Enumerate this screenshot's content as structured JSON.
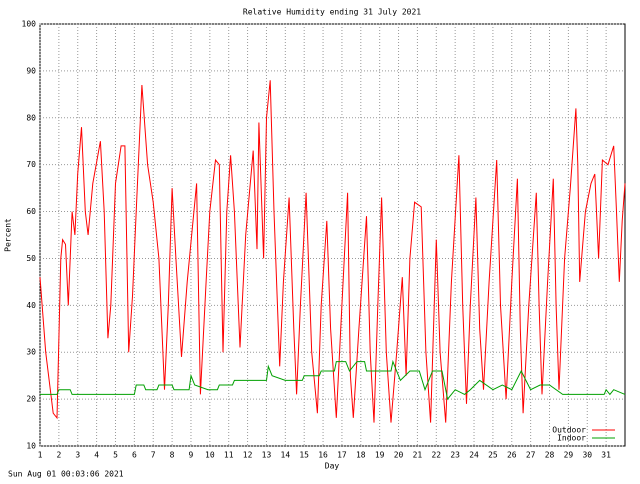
{
  "chart_data": {
    "type": "line",
    "title": "Relative Humidity ending 31 July 2021",
    "x_label": "Day",
    "y_label": "Percent",
    "footnote": "Sun Aug 01 00:03:06 2021",
    "xlim": [
      1,
      32
    ],
    "ylim": [
      10,
      100
    ],
    "xticks": [
      1,
      2,
      3,
      4,
      5,
      6,
      7,
      8,
      9,
      10,
      11,
      12,
      13,
      14,
      15,
      16,
      17,
      18,
      19,
      20,
      21,
      22,
      23,
      24,
      25,
      26,
      27,
      28,
      29,
      30,
      31
    ],
    "yticks": [
      10,
      20,
      30,
      40,
      50,
      60,
      70,
      80,
      90,
      100
    ],
    "grid": true,
    "legend": "bottom-right",
    "series": [
      {
        "name": "Outdoor",
        "color": "#ff0000",
        "x": [
          1,
          1.3,
          1.7,
          1.9,
          2.1,
          2.2,
          2.35,
          2.5,
          2.7,
          2.85,
          3,
          3.2,
          3.4,
          3.55,
          3.8,
          4.2,
          4.4,
          4.6,
          4.75,
          5,
          5.3,
          5.5,
          5.7,
          5.9,
          6.1,
          6.4,
          6.7,
          7,
          7.3,
          7.6,
          7.8,
          8,
          8.2,
          8.5,
          8.8,
          9.3,
          9.5,
          9.8,
          10,
          10.3,
          10.5,
          10.7,
          10.9,
          11.1,
          11.3,
          11.6,
          11.9,
          12.3,
          12.5,
          12.6,
          12.85,
          13,
          13.2,
          13.4,
          13.7,
          13.9,
          14.2,
          14.45,
          14.6,
          14.8,
          15.1,
          15.4,
          15.7,
          15.9,
          16.2,
          16.4,
          16.7,
          17,
          17.3,
          17.45,
          17.6,
          17.9,
          18.3,
          18.5,
          18.7,
          18.9,
          19.1,
          19.35,
          19.6,
          19.9,
          20.2,
          20.4,
          20.6,
          20.85,
          21.2,
          21.45,
          21.7,
          21.85,
          22,
          22.2,
          22.5,
          22.8,
          23.2,
          23.4,
          23.6,
          23.8,
          24.1,
          24.3,
          24.5,
          24.8,
          25.2,
          25.4,
          25.7,
          26,
          26.3,
          26.45,
          26.6,
          26.9,
          27.3,
          27.45,
          27.6,
          27.9,
          28.2,
          28.35,
          28.5,
          28.8,
          29.1,
          29.4,
          29.5,
          29.6,
          29.9,
          30.2,
          30.4,
          30.6,
          30.8,
          31.1,
          31.4,
          31.55,
          31.7,
          31.85,
          32
        ],
        "values": [
          46,
          30,
          17,
          16,
          50,
          54,
          53,
          40,
          60,
          55,
          68,
          78,
          60,
          55,
          66,
          75,
          60,
          33,
          40,
          66,
          74,
          74,
          30,
          42,
          60,
          87,
          70,
          62,
          50,
          22,
          40,
          65,
          50,
          29,
          45,
          66,
          21,
          45,
          60,
          71,
          70,
          30,
          60,
          72,
          60,
          31,
          55,
          73,
          52,
          79,
          50,
          80,
          88,
          60,
          27,
          45,
          63,
          35,
          21,
          40,
          64,
          30,
          17,
          40,
          58,
          35,
          16,
          40,
          64,
          25,
          16,
          35,
          59,
          30,
          15,
          40,
          63,
          30,
          15,
          30,
          46,
          25,
          50,
          62,
          61,
          30,
          15,
          35,
          54,
          30,
          15,
          45,
          72,
          40,
          19,
          40,
          63,
          35,
          22,
          45,
          71,
          40,
          20,
          45,
          67,
          35,
          17,
          40,
          64,
          40,
          21,
          45,
          67,
          40,
          22,
          50,
          65,
          82,
          70,
          45,
          60,
          66,
          68,
          50,
          71,
          70,
          74,
          60,
          45,
          58,
          66
        ]
      },
      {
        "name": "Indoor",
        "color": "#00a000",
        "x": [
          1,
          1.9,
          2,
          2.6,
          2.7,
          6,
          6.1,
          6.5,
          6.6,
          7.2,
          7.3,
          8,
          8.1,
          8.9,
          9,
          9.2,
          9.9,
          10.4,
          10.5,
          11.2,
          11.3,
          13,
          13.1,
          13.3,
          14,
          14.9,
          15,
          15.8,
          15.9,
          16.6,
          16.7,
          17.2,
          17.4,
          17.8,
          18.2,
          18.3,
          19.6,
          19.7,
          20.1,
          20.6,
          21.1,
          21.4,
          21.8,
          22.3,
          22.6,
          23,
          23.5,
          23.8,
          24.3,
          25,
          25.5,
          26,
          26.5,
          27,
          27.5,
          28,
          28.7,
          30.9,
          31,
          31.2,
          31.4,
          32
        ],
        "values": [
          21,
          21,
          22,
          22,
          21,
          21,
          23,
          23,
          22,
          22,
          23,
          23,
          22,
          22,
          25,
          23,
          22,
          22,
          23,
          23,
          24,
          24,
          27,
          25,
          24,
          24,
          25,
          25,
          26,
          26,
          28,
          28,
          26,
          28,
          28,
          26,
          26,
          28,
          24,
          26,
          26,
          22,
          26,
          26,
          20,
          22,
          21,
          22,
          24,
          22,
          23,
          22,
          26,
          22,
          23,
          23,
          21,
          21,
          22,
          21,
          22,
          21
        ]
      }
    ]
  }
}
